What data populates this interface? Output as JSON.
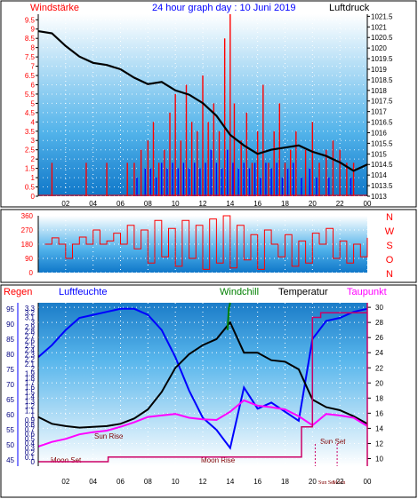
{
  "header": {
    "left_label": "Windstärke",
    "title": "24 hour graph day : 10 Juni 2019",
    "right_label": "Luftdruck"
  },
  "legend": {
    "regen": "Regen",
    "luftfeuchte": "Luftfeuchte",
    "windchill": "Windchill",
    "temperatur": "Temperatur",
    "taupunkt": "Taupunkt"
  },
  "annotations": {
    "moon_set": "Moon Set",
    "sun_rise": "Sun Rise",
    "moon_rise": "Moon Rise",
    "sun_set": "Sun Set",
    "sun_set_small": "Sun Set",
    "moon_small": "Moon"
  },
  "colors": {
    "wind": "#ff0000",
    "gust": "#0000ff",
    "pressure": "#000000",
    "humidity": "#0000ff",
    "temperature": "#000000",
    "dewpoint": "#ff00ff",
    "windchill": "#008000",
    "label_red": "#ff0000",
    "label_blue": "#0000ff",
    "label_magenta": "#ff00ff",
    "label_green": "#008000"
  },
  "chart_data": [
    {
      "type": "bar",
      "name": "wind",
      "x_ticks": [
        "02",
        "04",
        "06",
        "08",
        "10",
        "12",
        "14",
        "16",
        "18",
        "20",
        "22",
        "00"
      ],
      "y_left_ticks": [
        "0",
        "0.5",
        "1",
        "1.5",
        "2",
        "2.5",
        "3",
        "3.5",
        "4",
        "4.5",
        "5",
        "5.5",
        "6",
        "6.5",
        "7",
        "7.5",
        "8",
        "8.5",
        "9",
        "9.5"
      ],
      "y_right_ticks": [
        "1013",
        "1013.5",
        "1014",
        "1014.5",
        "1015",
        "1015.5",
        "1016",
        "1016.5",
        "1017",
        "1017.5",
        "1018",
        "1018.5",
        "1019",
        "1019.5",
        "1020",
        "1020.5",
        "1021",
        "1021.5"
      ],
      "wind_ylim": [
        0,
        9.8
      ],
      "pressure_ylim": [
        1013,
        1021.6
      ],
      "pressure": {
        "x": [
          0,
          1,
          2,
          3,
          4,
          5,
          6,
          7,
          8,
          9,
          10,
          11,
          12,
          13,
          14,
          15,
          16,
          17,
          18,
          19,
          20,
          21,
          22,
          23,
          24
        ],
        "y": [
          1020.8,
          1020.7,
          1020.1,
          1019.6,
          1019.3,
          1019.2,
          1019.0,
          1018.6,
          1018.3,
          1018.4,
          1018.0,
          1017.8,
          1017.4,
          1016.8,
          1015.9,
          1015.4,
          1015.0,
          1015.2,
          1015.3,
          1015.4,
          1015.1,
          1014.9,
          1014.6,
          1014.2,
          1014.5
        ]
      },
      "wind_bars": [
        {
          "x": 1.0,
          "v": 1.8
        },
        {
          "x": 3.5,
          "v": 1.8
        },
        {
          "x": 5.0,
          "v": 1.8
        },
        {
          "x": 6.5,
          "v": 1.8
        },
        {
          "x": 7.0,
          "v": 1.8
        },
        {
          "x": 7.5,
          "v": 2.5
        },
        {
          "x": 8.0,
          "v": 3.0
        },
        {
          "x": 8.4,
          "v": 4.0
        },
        {
          "x": 8.8,
          "v": 1.8
        },
        {
          "x": 9.2,
          "v": 2.5
        },
        {
          "x": 9.6,
          "v": 4.5
        },
        {
          "x": 10.0,
          "v": 5.5
        },
        {
          "x": 10.4,
          "v": 3.0
        },
        {
          "x": 10.8,
          "v": 6.0
        },
        {
          "x": 11.2,
          "v": 4.0
        },
        {
          "x": 11.6,
          "v": 3.5
        },
        {
          "x": 12.0,
          "v": 6.5
        },
        {
          "x": 12.4,
          "v": 4.0
        },
        {
          "x": 12.8,
          "v": 5.0
        },
        {
          "x": 13.2,
          "v": 3.5
        },
        {
          "x": 13.6,
          "v": 8.5
        },
        {
          "x": 14.0,
          "v": 9.8
        },
        {
          "x": 14.3,
          "v": 5.0
        },
        {
          "x": 14.8,
          "v": 3.0
        },
        {
          "x": 15.2,
          "v": 4.5
        },
        {
          "x": 15.6,
          "v": 1.8
        },
        {
          "x": 16.0,
          "v": 3.5
        },
        {
          "x": 16.4,
          "v": 6.0
        },
        {
          "x": 16.8,
          "v": 1.8
        },
        {
          "x": 17.2,
          "v": 3.5
        },
        {
          "x": 17.6,
          "v": 5.0
        },
        {
          "x": 18.0,
          "v": 1.8
        },
        {
          "x": 18.4,
          "v": 2.5
        },
        {
          "x": 18.8,
          "v": 3.5
        },
        {
          "x": 19.5,
          "v": 2.5
        },
        {
          "x": 20.0,
          "v": 4.0
        },
        {
          "x": 20.5,
          "v": 1.8
        },
        {
          "x": 21.0,
          "v": 2.5
        },
        {
          "x": 21.5,
          "v": 3.0
        },
        {
          "x": 22.0,
          "v": 2.5
        },
        {
          "x": 22.5,
          "v": 1.8
        },
        {
          "x": 23.0,
          "v": 1.8
        }
      ],
      "gust_bars": [
        {
          "x": 7.2,
          "v": 1.0
        },
        {
          "x": 7.8,
          "v": 1.5
        },
        {
          "x": 8.2,
          "v": 1.5
        },
        {
          "x": 8.6,
          "v": 1.0
        },
        {
          "x": 9.0,
          "v": 1.8
        },
        {
          "x": 9.4,
          "v": 1.5
        },
        {
          "x": 9.8,
          "v": 1.8
        },
        {
          "x": 10.2,
          "v": 1.5
        },
        {
          "x": 10.6,
          "v": 1.8
        },
        {
          "x": 11.0,
          "v": 1.5
        },
        {
          "x": 11.4,
          "v": 1.8
        },
        {
          "x": 11.8,
          "v": 1.5
        },
        {
          "x": 12.2,
          "v": 1.8
        },
        {
          "x": 12.6,
          "v": 2.5
        },
        {
          "x": 13.0,
          "v": 1.8
        },
        {
          "x": 13.4,
          "v": 1.5
        },
        {
          "x": 13.8,
          "v": 2.5
        },
        {
          "x": 14.2,
          "v": 1.8
        },
        {
          "x": 14.6,
          "v": 1.5
        },
        {
          "x": 15.0,
          "v": 1.8
        },
        {
          "x": 15.4,
          "v": 1.5
        },
        {
          "x": 15.8,
          "v": 1.8
        },
        {
          "x": 16.2,
          "v": 1.0
        },
        {
          "x": 16.6,
          "v": 1.8
        },
        {
          "x": 17.0,
          "v": 1.5
        },
        {
          "x": 17.4,
          "v": 1.8
        },
        {
          "x": 17.8,
          "v": 1.0
        },
        {
          "x": 18.2,
          "v": 1.5
        },
        {
          "x": 18.6,
          "v": 1.8
        },
        {
          "x": 19.2,
          "v": 1.0
        },
        {
          "x": 19.8,
          "v": 1.5
        },
        {
          "x": 20.3,
          "v": 1.0
        },
        {
          "x": 21.2,
          "v": 1.0
        },
        {
          "x": 22.8,
          "v": 1.0
        }
      ]
    },
    {
      "type": "line",
      "name": "direction",
      "y_ticks": [
        "0",
        "90",
        "180",
        "270",
        "360"
      ],
      "ylim": [
        0,
        360
      ],
      "compass": [
        "N",
        "W",
        "S",
        "O",
        "N"
      ],
      "series": {
        "x": [
          0.5,
          1.0,
          1.5,
          2.0,
          2.5,
          3.0,
          3.5,
          4.0,
          4.5,
          5.0,
          5.5,
          6.0,
          6.5,
          7.0,
          7.5,
          8.0,
          8.5,
          9.0,
          9.5,
          10.0,
          10.5,
          11.0,
          11.5,
          12.0,
          12.5,
          13.0,
          13.5,
          14.0,
          14.5,
          15.0,
          15.5,
          16.0,
          16.5,
          17.0,
          17.5,
          18.0,
          18.5,
          19.0,
          19.5,
          20.0,
          20.5,
          21.0,
          21.5,
          22.0,
          22.5,
          23.0,
          23.5,
          24.0
        ],
        "y": [
          180,
          220,
          180,
          90,
          180,
          225,
          180,
          270,
          180,
          200,
          250,
          180,
          300,
          150,
          270,
          60,
          330,
          100,
          280,
          40,
          330,
          90,
          300,
          20,
          340,
          60,
          360,
          30,
          300,
          80,
          240,
          20,
          270,
          180,
          100,
          240,
          40,
          200,
          60,
          250,
          180,
          280,
          90,
          200,
          60,
          180,
          100,
          220
        ]
      }
    },
    {
      "type": "line",
      "name": "temperature-humidity",
      "y_regen_ticks": [
        "0",
        "0.1",
        "0.2",
        "0.3",
        "0.4",
        "0.5",
        "0.6",
        "0.7",
        "0.8",
        "0.9",
        "1",
        "1.1",
        "1.2",
        "1.3",
        "1.4",
        "1.5",
        "1.6",
        "1.7",
        "1.8",
        "1.9",
        "2",
        "2.1",
        "2.2",
        "2.3",
        "2.4",
        "2.5",
        "2.6",
        "2.7",
        "2.8",
        "2.9",
        "3",
        "3.1",
        "3.2",
        "3.3"
      ],
      "y_humidity_ticks": [
        "45",
        "50",
        "55",
        "60",
        "65",
        "70",
        "75",
        "80",
        "85",
        "90",
        "95"
      ],
      "y_temp_ticks": [
        "10",
        "12",
        "14",
        "16",
        "18",
        "20",
        "22",
        "24",
        "26",
        "28",
        "30"
      ],
      "humidity_ylim": [
        43,
        97
      ],
      "temp_ylim": [
        9,
        30.6
      ],
      "humidity": {
        "x": [
          0,
          1,
          2,
          3,
          4,
          5,
          6,
          7,
          8,
          9,
          10,
          11,
          12,
          13,
          14,
          15,
          16,
          17,
          18,
          19,
          20,
          21,
          22,
          23,
          24
        ],
        "y": [
          79,
          83,
          88,
          92,
          93,
          94,
          95,
          95,
          93,
          88,
          79,
          68,
          59,
          55,
          49,
          69,
          62,
          64,
          61,
          58,
          85,
          91,
          92,
          94,
          95
        ]
      },
      "temperature": {
        "x": [
          0,
          1,
          2,
          3,
          4,
          5,
          6,
          7,
          8,
          9,
          10,
          11,
          12,
          13,
          14,
          15,
          16,
          17,
          18,
          19,
          20,
          21,
          22,
          23,
          24
        ],
        "y": [
          15.5,
          14.6,
          14.3,
          14.1,
          14.2,
          14.3,
          14.6,
          15.3,
          16.5,
          18.8,
          22.0,
          23.8,
          25.0,
          25.8,
          28.0,
          24.0,
          24.0,
          23.0,
          22.8,
          21.8,
          17.8,
          16.8,
          16.4,
          15.6,
          14.6
        ]
      },
      "dewpoint": {
        "x": [
          0,
          1,
          2,
          3,
          4,
          5,
          6,
          7,
          8,
          9,
          10,
          11,
          12,
          13,
          14,
          15,
          16,
          17,
          18,
          19,
          20,
          21,
          22,
          23,
          24
        ],
        "y": [
          11.6,
          12.2,
          12.6,
          13.2,
          13.5,
          13.7,
          14.2,
          14.8,
          15.5,
          15.7,
          15.9,
          15.4,
          15.2,
          15.1,
          16.2,
          17.7,
          17.0,
          16.8,
          16.5,
          15.6,
          14.4,
          15.9,
          15.7,
          15.4,
          14.3
        ]
      },
      "windchill": {
        "x": [
          13.8,
          13.9,
          14.0
        ],
        "y": [
          27.0,
          29.8,
          30.6
        ]
      },
      "rain": {
        "x": [
          0,
          5,
          5.1,
          19.1,
          19.2,
          20.0,
          20.6,
          24
        ],
        "y": [
          0,
          0,
          0.1,
          0.1,
          0.75,
          3.1,
          3.2,
          3.2
        ]
      }
    }
  ]
}
